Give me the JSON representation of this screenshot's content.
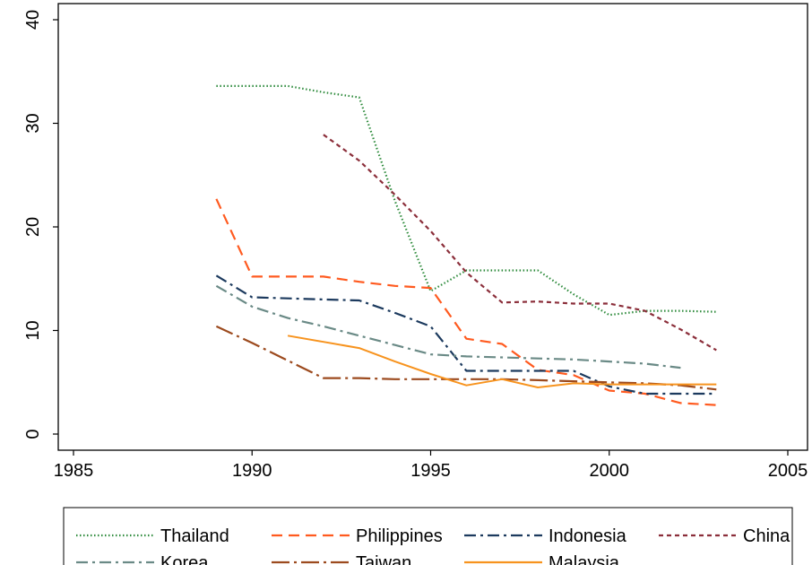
{
  "chart_data": {
    "type": "line",
    "title": "",
    "xlabel": "",
    "ylabel": "",
    "xlim": [
      1985,
      2005
    ],
    "ylim": [
      0,
      40
    ],
    "xticks": [
      1985,
      1990,
      1995,
      2000,
      2005
    ],
    "yticks": [
      0,
      10,
      20,
      30,
      40
    ],
    "grid": false,
    "legend_position": "bottom",
    "series": [
      {
        "name": "Thailand",
        "color": "#2e8b3c",
        "dash": "dotted",
        "x": [
          1989,
          1990,
          1991,
          1992,
          1993,
          1994,
          1995,
          1996,
          1997,
          1998,
          1999,
          2000,
          2001,
          2002,
          2003
        ],
        "y": [
          33.6,
          33.6,
          33.6,
          33.0,
          32.5,
          22.5,
          13.8,
          15.8,
          15.8,
          15.8,
          13.5,
          11.5,
          11.9,
          11.9,
          11.8
        ]
      },
      {
        "name": "Philippines",
        "color": "#ff5a1f",
        "dash": "dashed",
        "x": [
          1989,
          1990,
          1991,
          1992,
          1993,
          1994,
          1995,
          1996,
          1997,
          1998,
          1999,
          2000,
          2001,
          2002,
          2003
        ],
        "y": [
          22.7,
          15.2,
          15.2,
          15.2,
          14.7,
          14.3,
          14.1,
          9.2,
          8.7,
          6.2,
          5.7,
          4.2,
          3.9,
          3.0,
          2.8
        ]
      },
      {
        "name": "Indonesia",
        "color": "#1c3a5e",
        "dash": "dashdot",
        "x": [
          1989,
          1990,
          1991,
          1992,
          1993,
          1994,
          1995,
          1996,
          1997,
          1998,
          1999,
          2000,
          2001,
          2002,
          2003
        ],
        "y": [
          15.3,
          13.2,
          13.1,
          13.0,
          12.9,
          11.7,
          10.4,
          6.1,
          6.1,
          6.1,
          6.1,
          4.6,
          3.9,
          3.9,
          3.9
        ]
      },
      {
        "name": "China",
        "color": "#8b2e3a",
        "dash": "shortdash",
        "x": [
          1992,
          1993,
          1994,
          1995,
          1996,
          1997,
          1998,
          1999,
          2000,
          2001,
          2002,
          2003
        ],
        "y": [
          28.9,
          26.4,
          23.1,
          19.6,
          15.6,
          12.7,
          12.8,
          12.6,
          12.6,
          11.9,
          10.1,
          8.1
        ]
      },
      {
        "name": "Korea",
        "color": "#6a8a86",
        "dash": "dashdot",
        "x": [
          1989,
          1990,
          1991,
          1992,
          1993,
          1994,
          1995,
          1996,
          1997,
          1998,
          1999,
          2000,
          2001,
          2002
        ],
        "y": [
          14.3,
          12.3,
          11.2,
          10.4,
          9.5,
          8.6,
          7.7,
          7.5,
          7.4,
          7.3,
          7.2,
          7.0,
          6.8,
          6.4
        ]
      },
      {
        "name": "Taiwan",
        "color": "#9c4a1e",
        "dash": "longdashdot",
        "x": [
          1989,
          1990,
          1991,
          1992,
          1993,
          1994,
          1995,
          1996,
          1997,
          1998,
          1999,
          2000,
          2001,
          2002,
          2003
        ],
        "y": [
          10.4,
          8.8,
          7.1,
          5.4,
          5.4,
          5.3,
          5.3,
          5.3,
          5.3,
          5.2,
          5.1,
          5.0,
          4.9,
          4.7,
          4.3
        ]
      },
      {
        "name": "Malaysia",
        "color": "#f7931e",
        "dash": "solid",
        "x": [
          1991,
          1992,
          1993,
          1994,
          1995,
          1996,
          1997,
          1998,
          1999,
          2000,
          2001,
          2002,
          2003
        ],
        "y": [
          9.5,
          8.9,
          8.3,
          7.0,
          5.8,
          4.7,
          5.3,
          4.5,
          4.9,
          4.8,
          4.8,
          4.8,
          4.8
        ]
      }
    ]
  }
}
